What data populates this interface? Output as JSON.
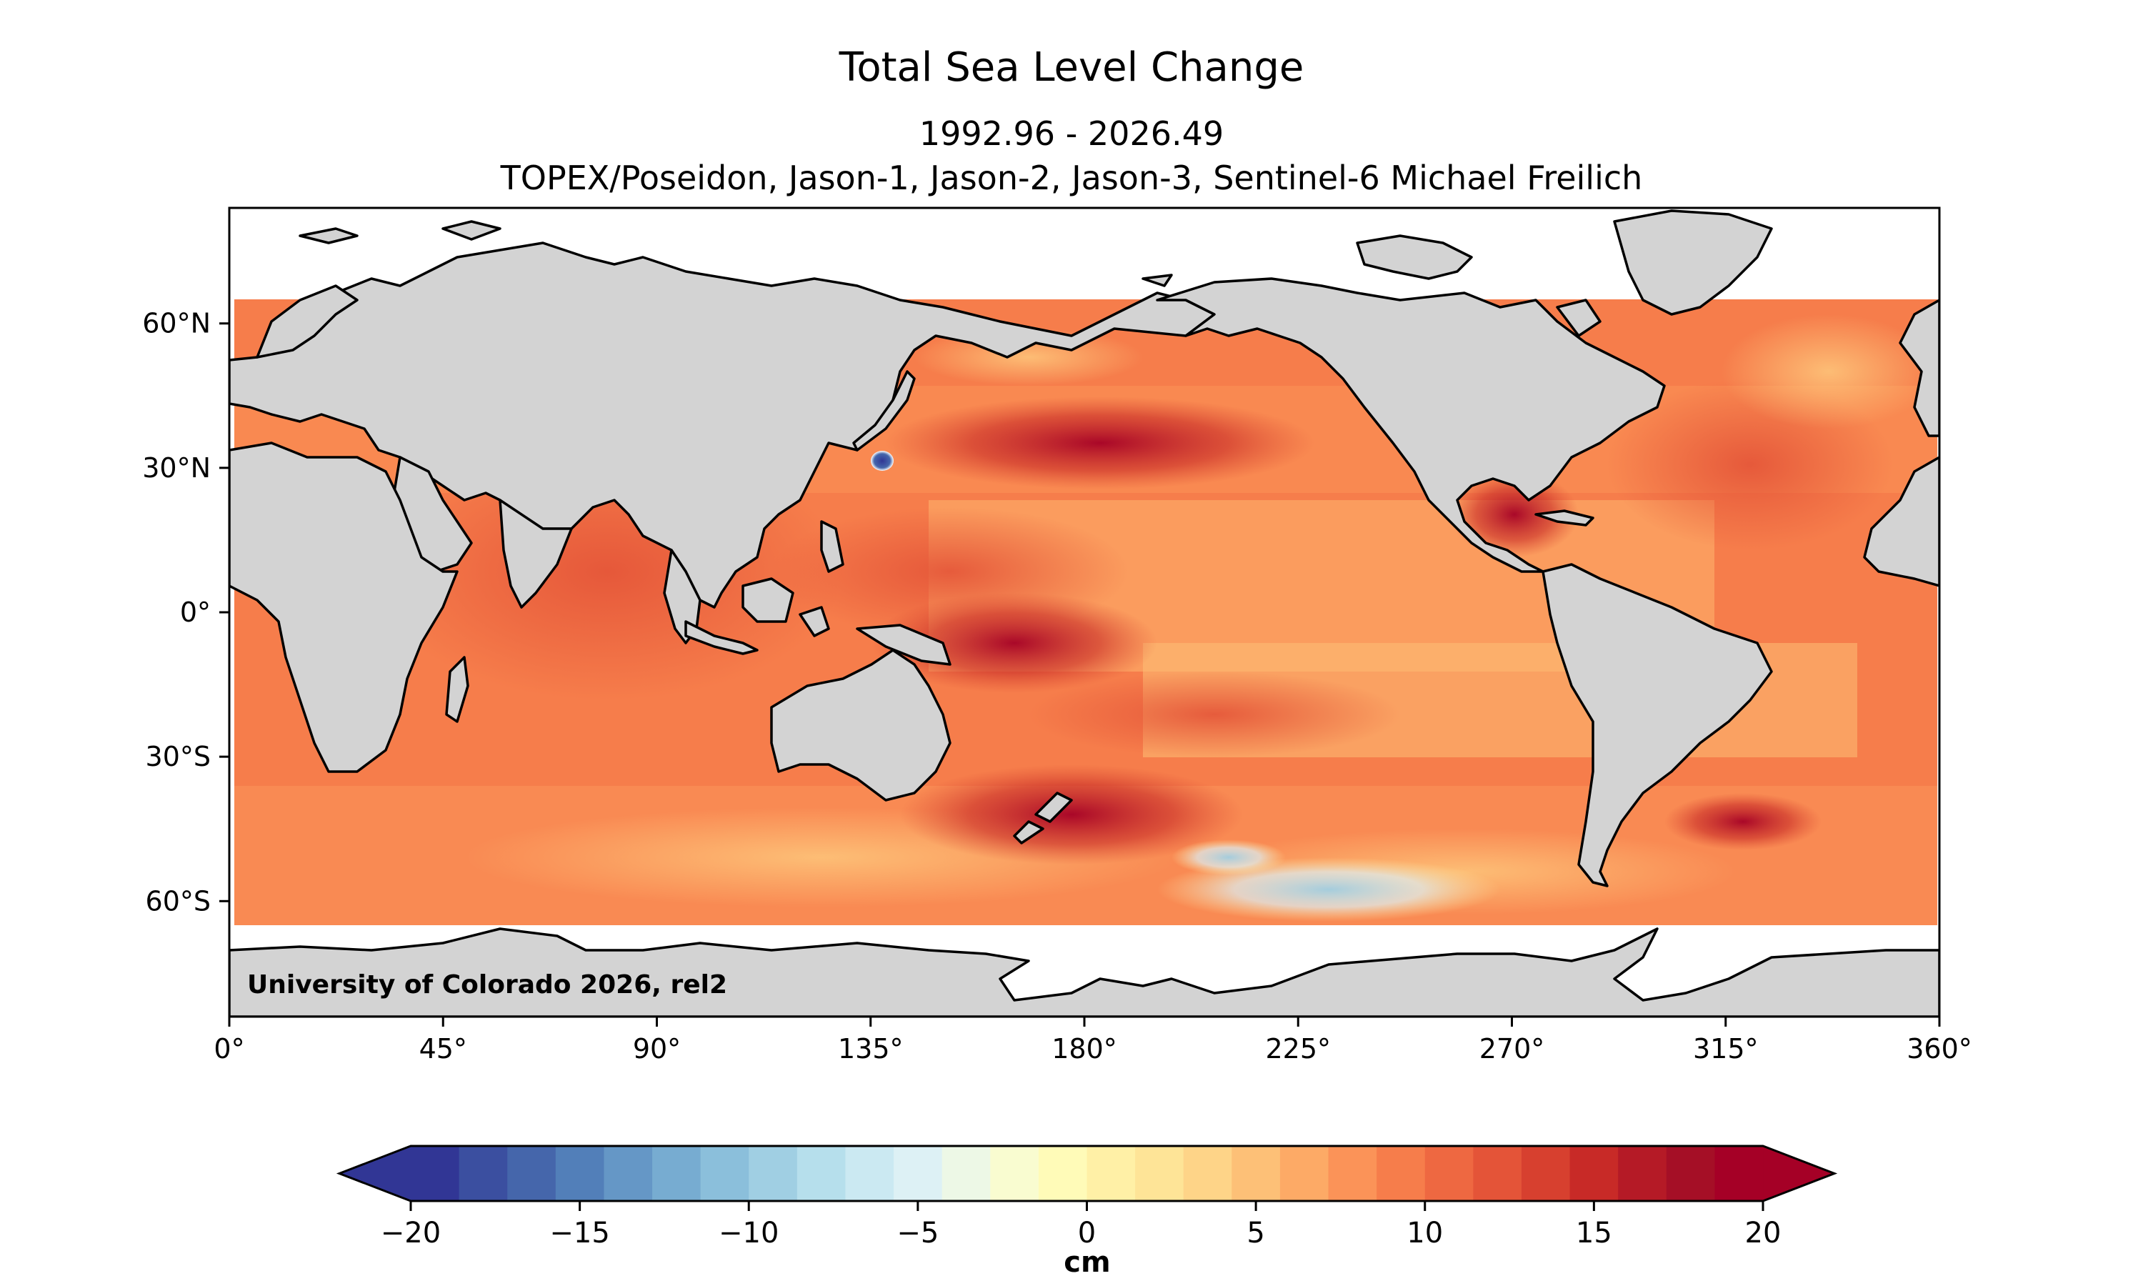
{
  "map": {
    "title": "Total Sea Level Change",
    "subtitle_period": "1992.96 - 2026.49",
    "subtitle_missions": "TOPEX/Poseidon, Jason-1, Jason-2, Jason-3, Sentinel-6 Michael Freilich",
    "credit": "University of Colorado 2026, rel2",
    "projection": "plate-carree",
    "lon_range": [
      0,
      360
    ],
    "lat_range": [
      -84,
      84
    ],
    "data_lat_coverage": [
      -66,
      66
    ],
    "land_color": "#d3d3d3",
    "coastline_color": "#000000",
    "no_data_color": "#ffffff",
    "lon_ticks": [
      "0°",
      "45°",
      "90°",
      "135°",
      "180°",
      "225°",
      "270°",
      "315°",
      "360°"
    ],
    "lat_ticks": [
      "60°N",
      "30°N",
      "0°",
      "30°S",
      "60°S"
    ]
  },
  "colorbar": {
    "colormap": "RdYlBu_r",
    "unit": "cm",
    "range": [
      -20,
      20
    ],
    "extend": "both",
    "tick_labels": [
      "−20",
      "−15",
      "−10",
      "−5",
      "0",
      "5",
      "10",
      "15",
      "20"
    ],
    "colors": [
      "#313695",
      "#3b4fa0",
      "#4566ab",
      "#527fb9",
      "#6597c6",
      "#77acd1",
      "#8bbfdb",
      "#a0cfe3",
      "#b6dfec",
      "#cbe9f2",
      "#ddf1f5",
      "#edf8e6",
      "#f9fcd0",
      "#fffbb8",
      "#fff0a6",
      "#fee497",
      "#fed488",
      "#fdc077",
      "#fdaa66",
      "#fb9358",
      "#f67d4b",
      "#ee6841",
      "#e45438",
      "#d7402f",
      "#c82a27",
      "#b51a26",
      "#a50f26",
      "#a50026"
    ],
    "min_color": "#313695",
    "max_color": "#a50026"
  }
}
